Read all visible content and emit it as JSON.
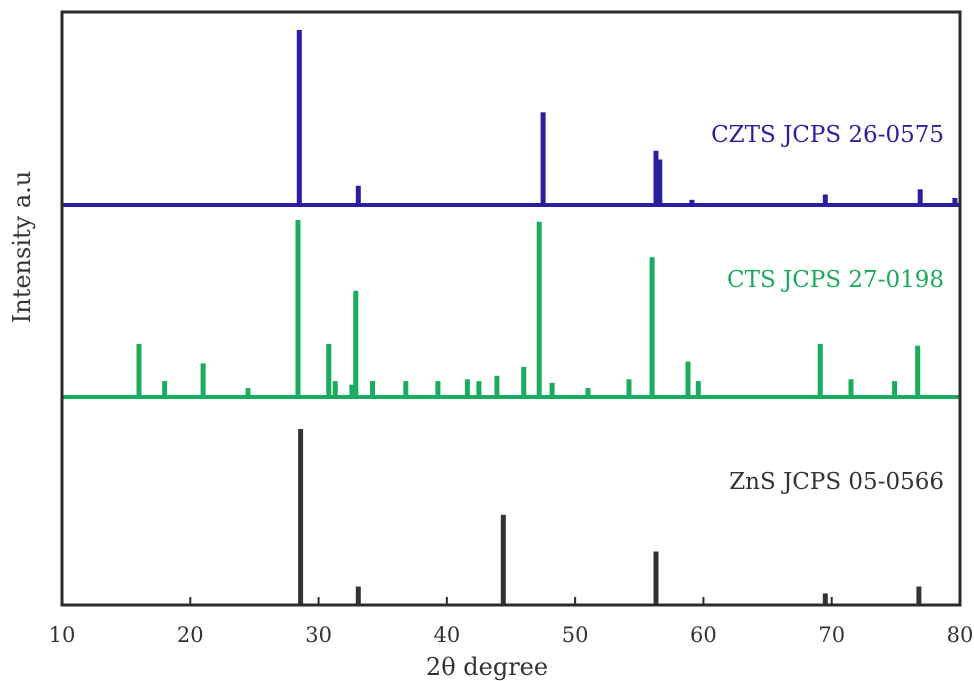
{
  "chart_data": {
    "type": "bar",
    "title": "",
    "xlabel": "2θ degree",
    "ylabel": "Intensity a.u",
    "xlim": [
      10,
      80
    ],
    "xticks": [
      "10",
      "20",
      "30",
      "40",
      "50",
      "60",
      "70",
      "80"
    ],
    "grid": false,
    "series": [
      {
        "name": "CZTS  JCPS 26-0575",
        "color": "#2b1ea1",
        "peaks": [
          {
            "x": 28.5,
            "y": 100
          },
          {
            "x": 33.1,
            "y": 11
          },
          {
            "x": 47.5,
            "y": 53
          },
          {
            "x": 56.3,
            "y": 31
          },
          {
            "x": 56.6,
            "y": 26
          },
          {
            "x": 59.1,
            "y": 3
          },
          {
            "x": 69.5,
            "y": 6
          },
          {
            "x": 76.9,
            "y": 9
          },
          {
            "x": 79.6,
            "y": 4
          }
        ]
      },
      {
        "name": "CTS  JCPS 27-0198",
        "color": "#1aab5f",
        "peaks": [
          {
            "x": 16.0,
            "y": 30
          },
          {
            "x": 18.0,
            "y": 9
          },
          {
            "x": 21.0,
            "y": 19
          },
          {
            "x": 24.5,
            "y": 5
          },
          {
            "x": 28.4,
            "y": 100
          },
          {
            "x": 30.8,
            "y": 30
          },
          {
            "x": 31.3,
            "y": 9
          },
          {
            "x": 32.6,
            "y": 7
          },
          {
            "x": 32.9,
            "y": 60
          },
          {
            "x": 34.2,
            "y": 9
          },
          {
            "x": 36.8,
            "y": 9
          },
          {
            "x": 39.3,
            "y": 9
          },
          {
            "x": 41.6,
            "y": 10
          },
          {
            "x": 42.5,
            "y": 9
          },
          {
            "x": 43.9,
            "y": 12
          },
          {
            "x": 46.0,
            "y": 17
          },
          {
            "x": 47.2,
            "y": 99
          },
          {
            "x": 48.2,
            "y": 8
          },
          {
            "x": 51.0,
            "y": 5
          },
          {
            "x": 54.2,
            "y": 10
          },
          {
            "x": 56.0,
            "y": 79
          },
          {
            "x": 58.8,
            "y": 20
          },
          {
            "x": 59.6,
            "y": 9
          },
          {
            "x": 69.1,
            "y": 30
          },
          {
            "x": 71.5,
            "y": 10
          },
          {
            "x": 74.9,
            "y": 9
          },
          {
            "x": 76.7,
            "y": 29
          }
        ]
      },
      {
        "name": "ZnS  JCPS 05-0566",
        "color": "#333333",
        "peaks": [
          {
            "x": 28.6,
            "y": 100
          },
          {
            "x": 33.1,
            "y": 10
          },
          {
            "x": 44.4,
            "y": 51
          },
          {
            "x": 56.3,
            "y": 30
          },
          {
            "x": 69.5,
            "y": 6
          },
          {
            "x": 76.8,
            "y": 10
          }
        ]
      }
    ]
  }
}
